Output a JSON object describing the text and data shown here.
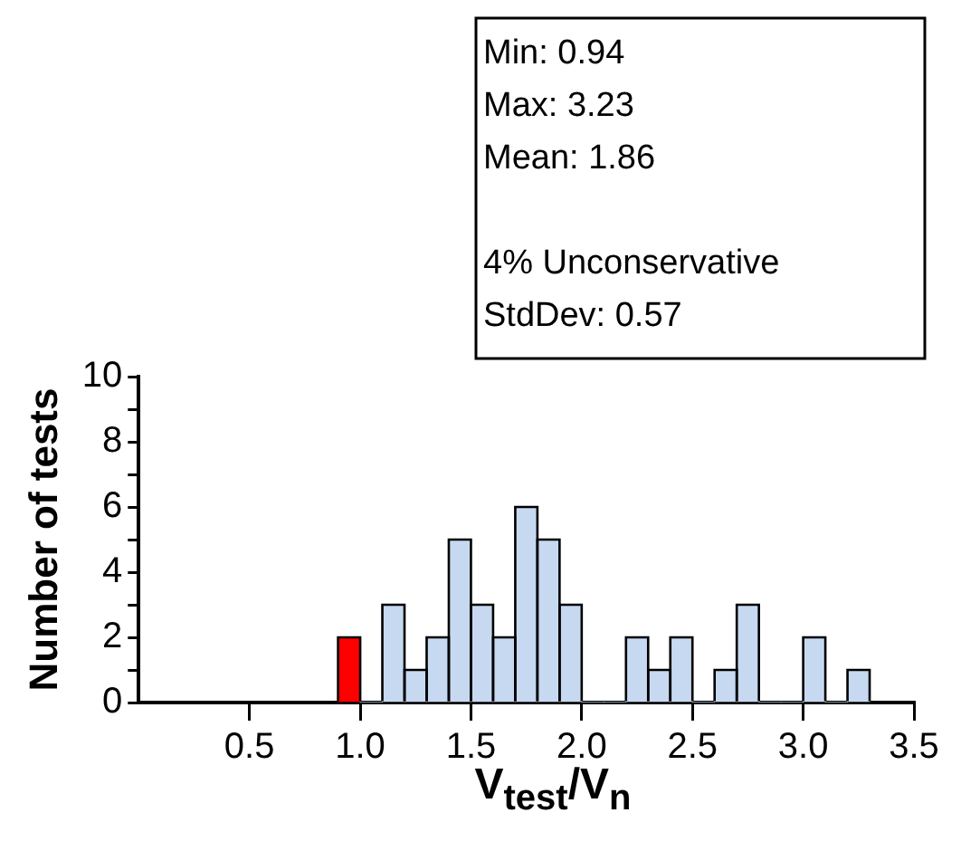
{
  "chart_data": {
    "type": "histogram",
    "xlabel": "V$_{test}$/V$_{n}$",
    "ylabel": "Number of tests",
    "bins": [
      0.9,
      1.0,
      1.1,
      1.2,
      1.3,
      1.4,
      1.5,
      1.6,
      1.7,
      1.8,
      1.9,
      2.0,
      2.1,
      2.2,
      2.3,
      2.4,
      2.5,
      2.6,
      2.7,
      2.8,
      2.9,
      3.0,
      3.1,
      3.2,
      3.3
    ],
    "values": [
      2,
      0,
      3,
      1,
      2,
      5,
      3,
      2,
      6,
      5,
      3,
      0,
      0,
      2,
      1,
      2,
      0,
      1,
      3,
      0,
      0,
      2,
      0,
      1
    ],
    "colors": [
      "#ff0000",
      "#c6d9f1",
      "#c6d9f1",
      "#c6d9f1",
      "#c6d9f1",
      "#c6d9f1",
      "#c6d9f1",
      "#c6d9f1",
      "#c6d9f1",
      "#c6d9f1",
      "#c6d9f1",
      "#c6d9f1",
      "#c6d9f1",
      "#c6d9f1",
      "#c6d9f1",
      "#c6d9f1",
      "#c6d9f1",
      "#c6d9f1",
      "#c6d9f1",
      "#c6d9f1",
      "#c6d9f1",
      "#c6d9f1",
      "#c6d9f1",
      "#c6d9f1"
    ],
    "xlim": [
      0,
      3.5
    ],
    "xticks": [
      0.5,
      {
        "value": 1,
        "label": "1.0"
      },
      1.5,
      {
        "value": 2,
        "label": "2.0"
      },
      2.5,
      {
        "value": 3,
        "label": "3.0"
      },
      3.5
    ],
    "ylim": [
      0,
      10
    ],
    "yticks": [
      0,
      {
        "value": 1,
        "label": null
      },
      2,
      {
        "value": 3,
        "label": null
      },
      4,
      {
        "value": 5,
        "label": null
      },
      6,
      {
        "value": 7,
        "label": null
      },
      8,
      {
        "value": 9,
        "label": null
      },
      10
    ],
    "grid": false,
    "legend": false,
    "annotations": [
      "Min: 0.94",
      "Max: 3.23",
      "Mean: 1.86",
      "4% Unconservative",
      "StdDev: 0.57"
    ]
  }
}
